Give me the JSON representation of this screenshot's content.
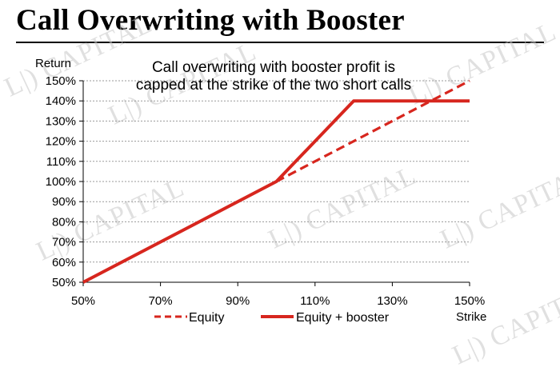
{
  "title": "Call Overwriting with Booster",
  "watermark_text": "L|) CAPITAL",
  "chart_data": {
    "type": "line",
    "annotation": [
      "Call overwriting with booster profit is",
      "capped at the strike of the two short calls"
    ],
    "ylabel": "Return",
    "xlabel": "Strike",
    "x_ticks": [
      "50%",
      "70%",
      "90%",
      "110%",
      "130%",
      "150%"
    ],
    "y_ticks": [
      "50%",
      "60%",
      "70%",
      "80%",
      "90%",
      "100%",
      "110%",
      "120%",
      "130%",
      "140%",
      "150%"
    ],
    "xlim": [
      50,
      150
    ],
    "ylim": [
      50,
      150
    ],
    "grid": true,
    "legend_position": "bottom",
    "series": [
      {
        "name": "Equity",
        "style": "dashed",
        "color": "#d7261e",
        "points": [
          [
            50,
            50
          ],
          [
            150,
            150
          ]
        ]
      },
      {
        "name": "Equity + booster",
        "style": "solid",
        "color": "#d7261e",
        "points": [
          [
            50,
            50
          ],
          [
            100,
            100
          ],
          [
            120,
            140
          ],
          [
            150,
            140
          ]
        ]
      }
    ]
  }
}
